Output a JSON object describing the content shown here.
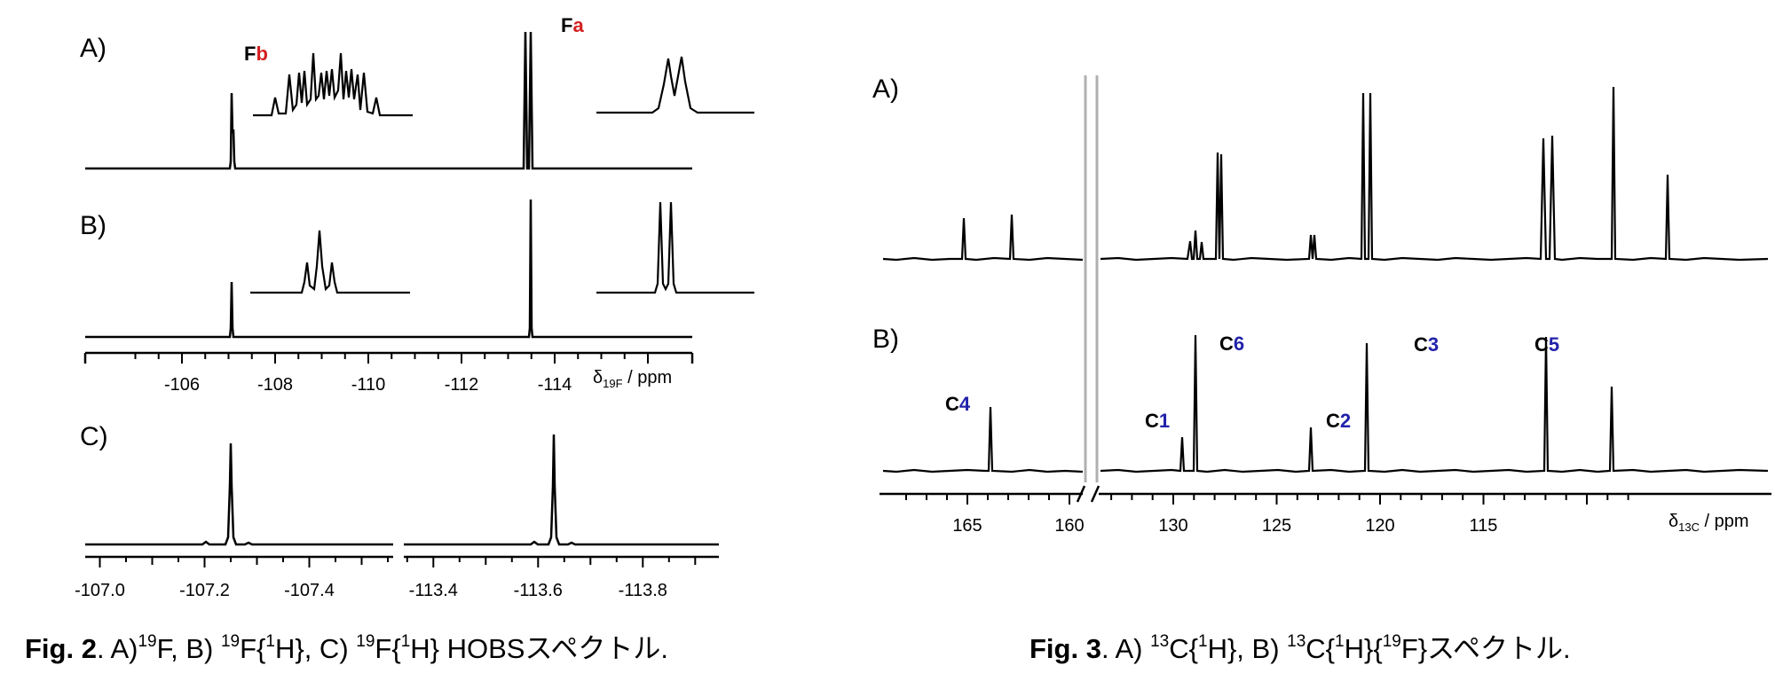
{
  "chart_data": [
    {
      "type": "nmr_spectrum",
      "figure": "Fig. 2",
      "x_unit_label": "δ19F / ppm",
      "panels": [
        "A)",
        "B)",
        "C)"
      ],
      "shared_axis": {
        "ticks": [
          -106,
          -108,
          -110,
          -112,
          -114
        ],
        "range": [
          -105.0,
          -116.0
        ],
        "reversed": true
      },
      "peaks_ppm": [
        -107.25,
        -113.63
      ],
      "spectrum_A_label": "19F",
      "spectrum_B_label": "19F{1H}",
      "spectrum_C_label": "19F{1H} HOBS",
      "insets": [
        {
          "label_prefix": "F",
          "label_suffix": "b",
          "suffix_color": "#d42020",
          "multiplicity_A": "multiplet",
          "multiplicity_B": "triplet"
        },
        {
          "label_prefix": "F",
          "label_suffix": "a",
          "suffix_color": "#d42020",
          "multiplicity_A": "doublet (broad)",
          "multiplicity_B": "doublet"
        }
      ],
      "zoom_axes": [
        {
          "ticks": [
            -107.0,
            -107.2,
            -107.4
          ],
          "tick_labels": [
            "-107.0",
            "-107.2",
            "-107.4"
          ],
          "peak_ppm": -107.25
        },
        {
          "ticks": [
            -113.4,
            -113.6,
            -113.8
          ],
          "tick_labels": [
            "-113.4",
            "-113.6",
            "-113.8"
          ],
          "peak_ppm": -113.63
        }
      ]
    },
    {
      "type": "nmr_spectrum",
      "figure": "Fig. 3",
      "x_unit_label": "δ13C / ppm",
      "panels": [
        "A)",
        "B)"
      ],
      "axis_break": true,
      "ticks_left_segment": [
        165,
        160
      ],
      "ticks_right_segment": [
        130,
        125,
        120,
        115
      ],
      "spectrum_A_label": "13C{1H}",
      "spectrum_B_label": "13C{1H}{19F}",
      "assignments_B": [
        {
          "label": "C4",
          "ppm": 163.7
        },
        {
          "label": "C1",
          "ppm": 129.7
        },
        {
          "label": "C6",
          "ppm": 128.6
        },
        {
          "label": "C2",
          "ppm": 122.2
        },
        {
          "label": "C3",
          "ppm": 120.6
        },
        {
          "label": "C5",
          "ppm": 115.3
        }
      ],
      "unassigned_peak_B_ppm": 113.4,
      "peaks_A_ppm": [
        164.7,
        162.6,
        130.0,
        129.7,
        129.4,
        128.65,
        128.55,
        122.25,
        122.1,
        120.8,
        120.5,
        115.4,
        115.2,
        113.4,
        111.5
      ]
    }
  ],
  "labels": {
    "fb_prefix": "F",
    "fb_suffix": "b",
    "fa_prefix": "F",
    "fa_suffix": "a",
    "fig2_axis_delta": "δ",
    "fig2_axis_sub": "19F",
    "fig2_axis_rest": " / ppm",
    "fig3_axis_delta": "δ",
    "fig3_axis_sub": "13C",
    "fig3_axis_rest": " / ppm",
    "c4_prefix": "C",
    "c4_num": "4",
    "c1_prefix": "C",
    "c1_num": "1",
    "c6_prefix": "C",
    "c6_num": "6",
    "c2_prefix": "C",
    "c2_num": "2",
    "c3_prefix": "C",
    "c3_num": "3",
    "c5_prefix": "C",
    "c5_num": "5"
  },
  "captions": {
    "fig2": {
      "bold": "Fig. 2",
      "t1": ". A)",
      "s1": "19",
      "t2": "F,  B) ",
      "s2": "19",
      "t3": "F{",
      "s3": "1",
      "t4": "H},  C) ",
      "s4": "19",
      "t5": "F{",
      "s5": "1",
      "t6": "H} HOBSスペクトル."
    },
    "fig3": {
      "bold": "Fig. 3",
      "t1": ". A) ",
      "s1": "13",
      "t2": "C{",
      "s2": "1",
      "t3": "H},  B) ",
      "s3": "13",
      "t4": "C{",
      "s4": "1",
      "t5": "H}{",
      "s5": "19",
      "t6": "F}スペクトル."
    }
  },
  "colors": {
    "spectrum": "#000000",
    "label_red": "#d42020",
    "label_blue": "#2222aa",
    "break_line": "#b0b0b0"
  }
}
